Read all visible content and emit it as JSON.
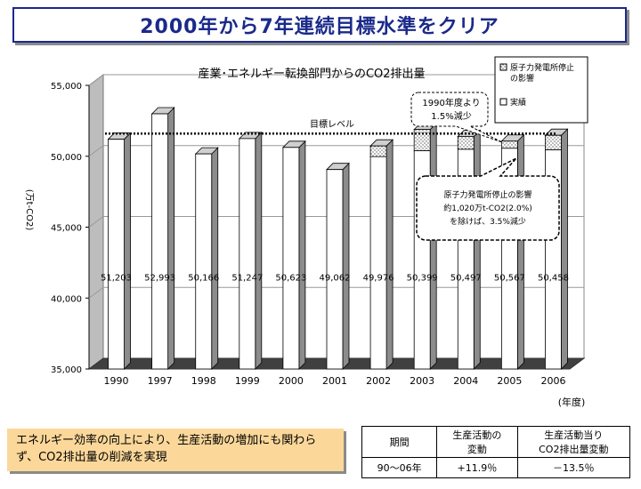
{
  "slide_title": "2000年から7年連続目標水準をクリア",
  "chart_data": {
    "type": "bar",
    "title": "産業･エネルギー転換部門からのCO2排出量",
    "ylabel": "(万t-CO2)",
    "xlabel": "(年度)",
    "ylim": [
      35000,
      55000
    ],
    "yticks": [
      "35,000",
      "40,000",
      "45,000",
      "50,000",
      "55,000"
    ],
    "categories": [
      "1990",
      "1997",
      "1998",
      "1999",
      "2000",
      "2001",
      "2002",
      "2003",
      "2004",
      "2005",
      "2006"
    ],
    "series": [
      {
        "name": "実績",
        "values": [
          51203,
          52993,
          50166,
          51247,
          50623,
          49062,
          49976,
          50399,
          50497,
          50567,
          50458
        ]
      },
      {
        "name": "原子力発電所停止の影響",
        "values": [
          0,
          0,
          0,
          0,
          0,
          0,
          750,
          1490,
          900,
          500,
          1020
        ]
      }
    ],
    "value_labels": [
      "51,203",
      "52,993",
      "50,166",
      "51,247",
      "50,623",
      "49,062",
      "49,976",
      "50,399",
      "50,497",
      "50,567",
      "50,458"
    ],
    "target_level": 51600,
    "target_label": "目標レベル",
    "legend": [
      "原子力発電所停止の影響",
      "実績"
    ],
    "callout_1990": [
      "1990年度より",
      "1.5%減少"
    ],
    "callout_nuclear": [
      "原子力発電所停止の影響",
      "約1,020万t-CO2(2.0%)",
      "を除けば、3.5%減少"
    ]
  },
  "note": "エネルギー効率の向上により、生産活動の増加にも関わらず、CO2排出量の削減を実現",
  "stats_table": {
    "headers": [
      "期間",
      "生産活動の\n変動",
      "生産活動当り\nCO2排出量変動"
    ],
    "row": [
      "90～06年",
      "+11.9％",
      "－13.5％"
    ]
  }
}
